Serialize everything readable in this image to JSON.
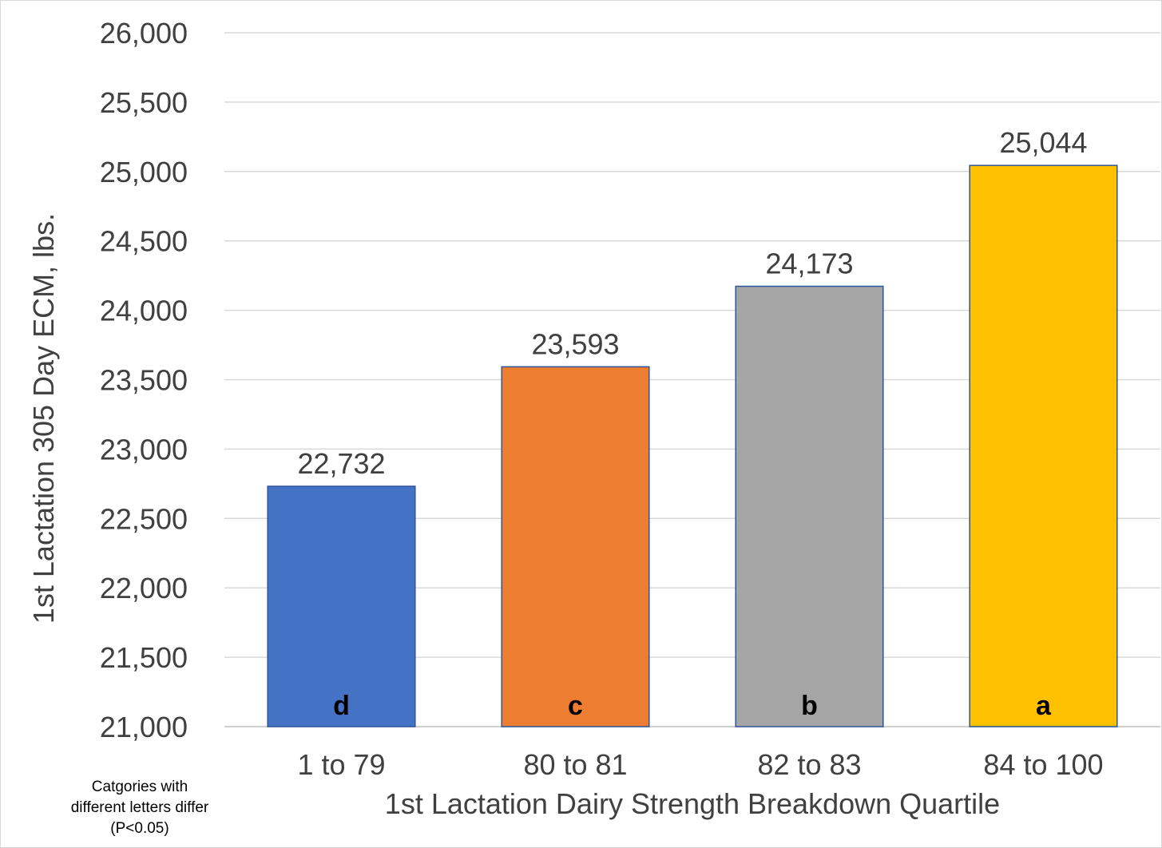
{
  "chart_data": {
    "type": "bar",
    "title": "",
    "xlabel": "1st Lactation Dairy Strength Breakdown Quartile",
    "ylabel": "1st Lactation 305 Day ECM, lbs.",
    "ylim": [
      21000,
      26000
    ],
    "ytick_step": 500,
    "yticks": [
      "21,000",
      "21,500",
      "22,000",
      "22,500",
      "23,000",
      "23,500",
      "24,000",
      "24,500",
      "25,000",
      "25,500",
      "26,000"
    ],
    "categories": [
      "1 to 79",
      "80 to 81",
      "82 to 83",
      "84 to 100"
    ],
    "values": [
      22732,
      23593,
      24173,
      25044
    ],
    "value_labels": [
      "22,732",
      "23,593",
      "24,173",
      "25,044"
    ],
    "significance_letters": [
      "d",
      "c",
      "b",
      "a"
    ],
    "bar_colors": [
      "#4472c4",
      "#ed7d31",
      "#a5a5a5",
      "#ffc000"
    ],
    "bar_edge_color": "#2f5597",
    "grid": true,
    "legend": "none",
    "footnote_lines": [
      "Catgories with",
      "different letters differ",
      "(P<0.05)"
    ]
  }
}
